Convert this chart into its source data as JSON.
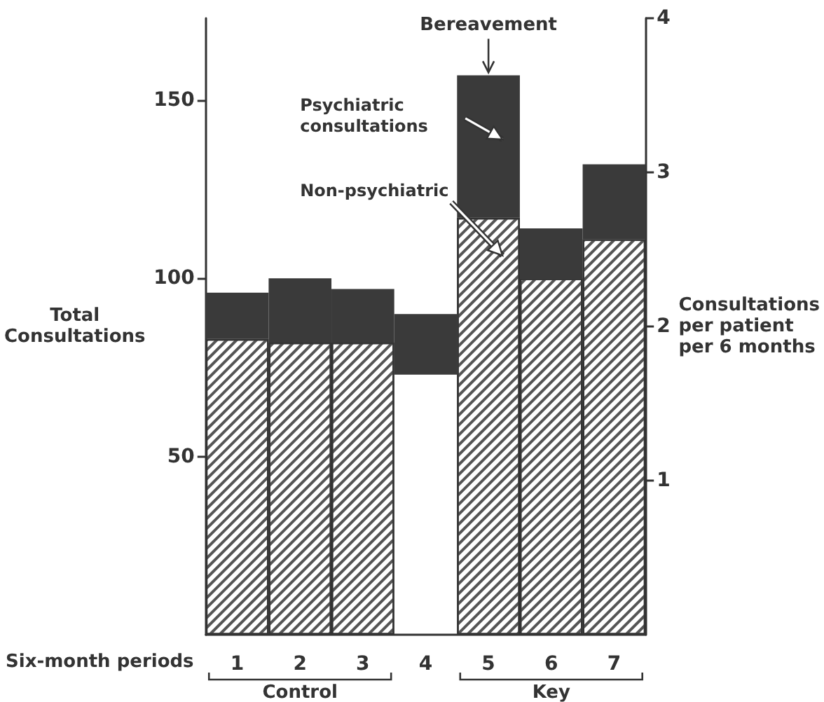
{
  "chart_data": {
    "type": "bar",
    "xlabel": "Six-month periods",
    "ylabel": "Total\nConsultations",
    "y2label": "Consultations\nper patient\nper 6 months",
    "categories": [
      "1",
      "2",
      "3",
      "4",
      "5",
      "6",
      "7"
    ],
    "series": [
      {
        "name": "Non-psychiatric",
        "color": "#ffffff",
        "values": [
          83,
          82,
          82,
          null,
          117,
          100,
          111
        ]
      },
      {
        "name": "Psychiatric consultations",
        "color": "#3a3a3a",
        "values": [
          13,
          18,
          15,
          17,
          40,
          14,
          21
        ],
        "base": [
          null,
          null,
          null,
          73,
          null,
          null,
          null
        ]
      }
    ],
    "ylim": [
      0,
      173
    ],
    "yticks": [
      50,
      100,
      150
    ],
    "y2lim": [
      0,
      4
    ],
    "y2ticks": [
      1,
      2,
      3,
      4
    ],
    "annotations": [
      {
        "text": "Bereavement",
        "x": "5",
        "y": 157
      },
      "Control",
      "Key"
    ],
    "stacked": true,
    "grid": false,
    "legend": false
  }
}
